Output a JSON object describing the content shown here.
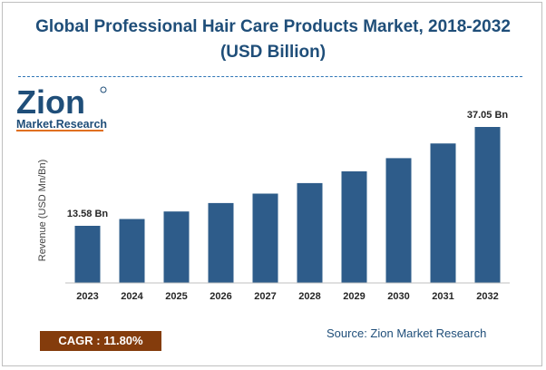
{
  "chart_data": {
    "type": "bar",
    "title_line1": "Global Professional Hair Care Products Market, 2018-2032",
    "title_line2": "(USD Billion)",
    "ylabel": "Revenue (USD Mn/Bn)",
    "xlabel": "",
    "categories": [
      "2023",
      "2024",
      "2025",
      "2026",
      "2027",
      "2028",
      "2029",
      "2030",
      "2031",
      "2032"
    ],
    "values": [
      13.58,
      15.18,
      16.97,
      18.98,
      21.22,
      23.72,
      26.52,
      29.64,
      33.14,
      37.05
    ],
    "data_labels": {
      "first": "13.58 Bn",
      "last": "37.05 Bn"
    },
    "ylim": [
      0,
      40
    ],
    "grid": false,
    "legend": "none",
    "bar_color": "#2e5c8a"
  },
  "logo": {
    "brand_main": "Zion",
    "brand_sub": "Market.Research",
    "brand_color": "#1f4e79",
    "accent_color": "#e07020"
  },
  "cagr": {
    "label": "CAGR : 11.80%",
    "color": "#843c0c"
  },
  "source": {
    "label": "Source: Zion Market Research"
  }
}
